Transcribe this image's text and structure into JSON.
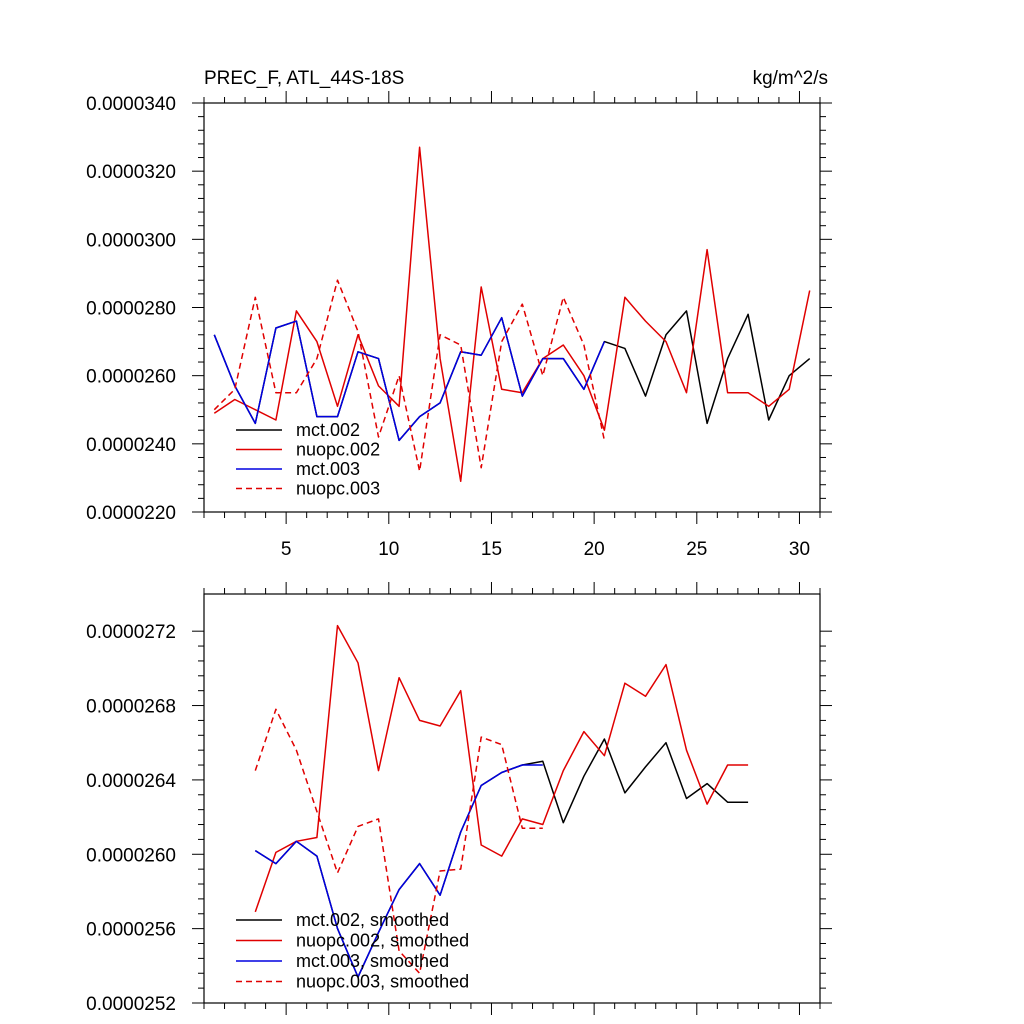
{
  "chart_data": [
    {
      "type": "line",
      "title": "PREC_F, ATL_44S-18S",
      "units": "kg/m^2/s",
      "xlim": [
        1,
        31
      ],
      "ylim": [
        2.2e-05,
        3.4e-05
      ],
      "xticks": [
        5,
        10,
        15,
        20,
        25,
        30
      ],
      "yticks": [
        "0.0000220",
        "0.0000240",
        "0.0000260",
        "0.0000280",
        "0.0000300",
        "0.0000320",
        "0.0000340"
      ],
      "legend": "bottom-left",
      "series": [
        {
          "name": "mct.002",
          "color": "#000000",
          "dash": "solid",
          "x": [
            1.5,
            2.5,
            3.5,
            4.5,
            5.5,
            6.5,
            7.5,
            8.5,
            9.5,
            10.5,
            11.5,
            12.5,
            13.5,
            14.5,
            15.5,
            16.5,
            17.5,
            18.5,
            19.5,
            20.5,
            21.5,
            22.5,
            23.5,
            24.5,
            25.5,
            26.5,
            27.5,
            28.5,
            29.5,
            30.5
          ],
          "y": [
            2.72e-05,
            2.57e-05,
            2.46e-05,
            2.74e-05,
            2.76e-05,
            2.48e-05,
            2.48e-05,
            2.67e-05,
            2.65e-05,
            2.41e-05,
            2.48e-05,
            2.52e-05,
            2.67e-05,
            2.66e-05,
            2.77e-05,
            2.54e-05,
            2.65e-05,
            2.65e-05,
            2.56e-05,
            2.7e-05,
            2.68e-05,
            2.54e-05,
            2.72e-05,
            2.79e-05,
            2.46e-05,
            2.65e-05,
            2.78e-05,
            2.47e-05,
            2.6e-05,
            2.65e-05
          ]
        },
        {
          "name": "nuopc.002",
          "color": "#e00000",
          "dash": "solid",
          "x": [
            1.5,
            2.5,
            3.5,
            4.5,
            5.5,
            6.5,
            7.5,
            8.5,
            9.5,
            10.5,
            11.5,
            12.5,
            13.5,
            14.5,
            15.5,
            16.5,
            17.5,
            18.5,
            19.5,
            20.5,
            21.5,
            22.5,
            23.5,
            24.5,
            25.5,
            26.5,
            27.5,
            28.5,
            29.5,
            30.5
          ],
          "y": [
            2.49e-05,
            2.53e-05,
            2.5e-05,
            2.47e-05,
            2.79e-05,
            2.7e-05,
            2.51e-05,
            2.72e-05,
            2.57e-05,
            2.51e-05,
            3.27e-05,
            2.65e-05,
            2.29e-05,
            2.86e-05,
            2.56e-05,
            2.55e-05,
            2.65e-05,
            2.69e-05,
            2.6e-05,
            2.44e-05,
            2.83e-05,
            2.76e-05,
            2.7e-05,
            2.55e-05,
            2.97e-05,
            2.55e-05,
            2.55e-05,
            2.51e-05,
            2.56e-05,
            2.85e-05
          ]
        },
        {
          "name": "mct.003",
          "color": "#0000e0",
          "dash": "solid",
          "x": [
            1.5,
            2.5,
            3.5,
            4.5,
            5.5,
            6.5,
            7.5,
            8.5,
            9.5,
            10.5,
            11.5,
            12.5,
            13.5,
            14.5,
            15.5,
            16.5,
            17.5,
            18.5,
            19.5,
            20.5
          ],
          "y": [
            2.72e-05,
            2.57e-05,
            2.46e-05,
            2.74e-05,
            2.76e-05,
            2.48e-05,
            2.48e-05,
            2.67e-05,
            2.65e-05,
            2.41e-05,
            2.48e-05,
            2.52e-05,
            2.67e-05,
            2.66e-05,
            2.77e-05,
            2.54e-05,
            2.65e-05,
            2.65e-05,
            2.56e-05,
            2.7e-05
          ]
        },
        {
          "name": "nuopc.003",
          "color": "#e00000",
          "dash": "dashed",
          "x": [
            1.5,
            2.5,
            3.5,
            4.5,
            5.5,
            6.5,
            7.5,
            8.5,
            9.5,
            10.5,
            11.5,
            12.5,
            13.5,
            14.5,
            15.5,
            16.5,
            17.5,
            18.5,
            19.5,
            20.5
          ],
          "y": [
            2.5e-05,
            2.56e-05,
            2.83e-05,
            2.55e-05,
            2.55e-05,
            2.65e-05,
            2.88e-05,
            2.73e-05,
            2.42e-05,
            2.6e-05,
            2.32e-05,
            2.72e-05,
            2.69e-05,
            2.33e-05,
            2.7e-05,
            2.81e-05,
            2.6e-05,
            2.83e-05,
            2.69e-05,
            2.41e-05
          ]
        }
      ]
    },
    {
      "type": "line",
      "xlim": [
        1,
        31
      ],
      "ylim": [
        2.52e-05,
        2.74e-05
      ],
      "yticks": [
        "0.0000252",
        "0.0000256",
        "0.0000260",
        "0.0000264",
        "0.0000268",
        "0.0000272"
      ],
      "xticks": [
        5,
        10,
        15,
        20,
        25,
        30
      ],
      "show_xtick_labels": false,
      "legend": "bottom-left",
      "series": [
        {
          "name": "mct.002, smoothed",
          "color": "#000000",
          "dash": "solid",
          "x": [
            3.5,
            4.5,
            5.5,
            6.5,
            7.5,
            8.5,
            9.5,
            10.5,
            11.5,
            12.5,
            13.5,
            14.5,
            15.5,
            16.5,
            17.5,
            18.5,
            19.5,
            20.5,
            21.5,
            22.5,
            23.5,
            24.5,
            25.5,
            26.5,
            27.5
          ],
          "y": [
            2.602e-05,
            2.595e-05,
            2.607e-05,
            2.599e-05,
            2.56e-05,
            2.534e-05,
            2.558e-05,
            2.581e-05,
            2.595e-05,
            2.578e-05,
            2.612e-05,
            2.637e-05,
            2.644e-05,
            2.648e-05,
            2.65e-05,
            2.617e-05,
            2.642e-05,
            2.662e-05,
            2.633e-05,
            2.647e-05,
            2.66e-05,
            2.63e-05,
            2.638e-05,
            2.628e-05,
            2.628e-05
          ]
        },
        {
          "name": "nuopc.002, smoothed",
          "color": "#e00000",
          "dash": "solid",
          "x": [
            3.5,
            4.5,
            5.5,
            6.5,
            7.5,
            8.5,
            9.5,
            10.5,
            11.5,
            12.5,
            13.5,
            14.5,
            15.5,
            16.5,
            17.5,
            18.5,
            19.5,
            20.5,
            21.5,
            22.5,
            23.5,
            24.5,
            25.5,
            26.5,
            27.5
          ],
          "y": [
            2.569e-05,
            2.601e-05,
            2.607e-05,
            2.609e-05,
            2.723e-05,
            2.703e-05,
            2.645e-05,
            2.695e-05,
            2.672e-05,
            2.669e-05,
            2.688e-05,
            2.605e-05,
            2.599e-05,
            2.619e-05,
            2.616e-05,
            2.645e-05,
            2.666e-05,
            2.653e-05,
            2.692e-05,
            2.685e-05,
            2.702e-05,
            2.656e-05,
            2.627e-05,
            2.648e-05,
            2.648e-05
          ]
        },
        {
          "name": "mct.003, smoothed",
          "color": "#0000e0",
          "dash": "solid",
          "x": [
            3.5,
            4.5,
            5.5,
            6.5,
            7.5,
            8.5,
            9.5,
            10.5,
            11.5,
            12.5,
            13.5,
            14.5,
            15.5,
            16.5,
            17.5
          ],
          "y": [
            2.602e-05,
            2.595e-05,
            2.607e-05,
            2.599e-05,
            2.56e-05,
            2.534e-05,
            2.558e-05,
            2.581e-05,
            2.595e-05,
            2.578e-05,
            2.612e-05,
            2.637e-05,
            2.644e-05,
            2.648e-05,
            2.648e-05
          ]
        },
        {
          "name": "nuopc.003, smoothed",
          "color": "#e00000",
          "dash": "dashed",
          "x": [
            3.5,
            4.5,
            5.5,
            6.5,
            7.5,
            8.5,
            9.5,
            10.5,
            11.5,
            12.5,
            13.5,
            14.5,
            15.5,
            16.5,
            17.5
          ],
          "y": [
            2.645e-05,
            2.678e-05,
            2.656e-05,
            2.623e-05,
            2.59e-05,
            2.615e-05,
            2.619e-05,
            2.548e-05,
            2.536e-05,
            2.591e-05,
            2.592e-05,
            2.663e-05,
            2.659e-05,
            2.614e-05,
            2.614e-05
          ]
        }
      ]
    }
  ]
}
